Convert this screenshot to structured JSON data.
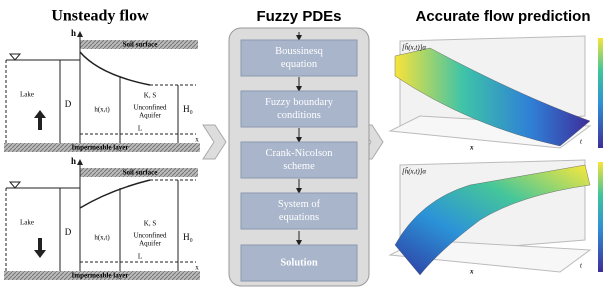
{
  "titles": {
    "left": "Unsteady flow",
    "middle": "Fuzzy PDEs",
    "right": "Accurate flow prediction"
  },
  "diagrams": [
    {
      "h": "h",
      "soil": "Soil surface",
      "lake": "Lake",
      "D": "D",
      "hxt": "h(x,t)",
      "KS": "K, S",
      "aquifer": [
        "Unconfined",
        "Aquifer"
      ],
      "H0": "H₀",
      "L": "L",
      "x": "x",
      "impermeable": "Impermeable layer"
    },
    {
      "h": "h",
      "soil": "Soil surface",
      "lake": "Lake",
      "D": "D",
      "hxt": "h(x,t)",
      "KS": "K, S",
      "aquifer": [
        "Unconfined",
        "Aquifer"
      ],
      "H0": "H₀",
      "L": "L",
      "x": "x",
      "impermeable": "Impermeable layer"
    }
  ],
  "steps": [
    [
      "Boussinesq",
      "equation"
    ],
    [
      "Fuzzy boundary",
      "conditions"
    ],
    [
      "Crank-Nicolson",
      "scheme"
    ],
    [
      "System of",
      "equations"
    ],
    [
      "Solution"
    ]
  ],
  "plots": [
    {
      "zlabel": "[h̃(x,t)]α",
      "xlabel": "x",
      "tlabel": "t"
    },
    {
      "zlabel": "[h̃(x,t)]α",
      "xlabel": "x",
      "tlabel": "t"
    }
  ]
}
